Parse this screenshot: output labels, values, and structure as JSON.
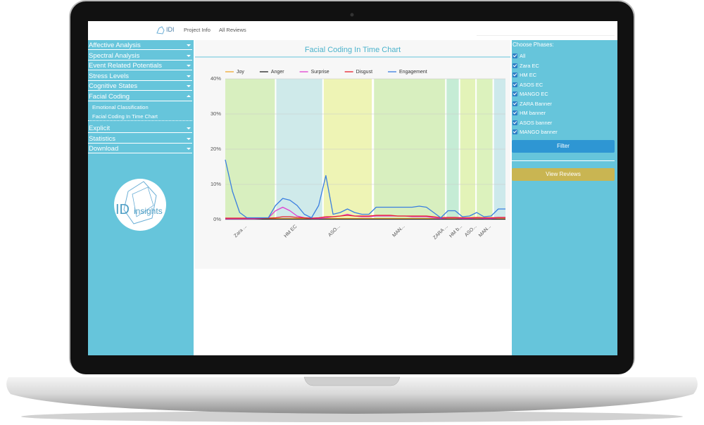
{
  "topbar": {
    "brand": "IDI",
    "links": [
      "Project Info",
      "All Reviews"
    ]
  },
  "sidebar": {
    "menu_top": [
      "Affective Analysis",
      "Spectral Analysis",
      "Event Related Potentials",
      "Stress Levels",
      "Cognitive States",
      "Facial Coding"
    ],
    "submenu": [
      "Emotional Classification",
      "Facial Coding In Time Chart"
    ],
    "menu_bottom": [
      "Explicit",
      "Statistics",
      "Download"
    ],
    "logo": {
      "mark": "ID",
      "text": "insights"
    }
  },
  "phases": {
    "title": "Choose Phases:",
    "options": [
      "All",
      "Zara EC",
      "HM EC",
      "ASOS EC",
      "MANGO EC",
      "ZARA Banner",
      "HM banner",
      "ASOS banner",
      "MANGO banner"
    ],
    "filter": "Filter",
    "view_reviews": "View Reviews"
  },
  "chart_data": {
    "type": "line",
    "title": "Facial Coding In Time Chart",
    "categories": [
      null,
      null,
      null,
      "Zara ...",
      null,
      null,
      null,
      null,
      null,
      null,
      "HM EC",
      null,
      null,
      null,
      null,
      null,
      "ASO...",
      null,
      null,
      null,
      null,
      null,
      null,
      null,
      null,
      "MAN...",
      null,
      null,
      null,
      null,
      null,
      "ZARA ...",
      null,
      "HM b...",
      null,
      "ASO...",
      null,
      "MAN...",
      null,
      null
    ],
    "series": [
      {
        "name": "Joy",
        "color": "#f0a830",
        "values": [
          0.3,
          0.3,
          0.3,
          0.3,
          0.3,
          0.3,
          0.3,
          0.3,
          0.3,
          0.3,
          0.3,
          0.3,
          0.3,
          0.3,
          0.3,
          0.3,
          0.3,
          0.3,
          0.3,
          0.3,
          0.3,
          0.3,
          0.3,
          0.3,
          0.3,
          0.3,
          0.3,
          0.3,
          0.3,
          0.3,
          0.3,
          0.3,
          0.3,
          0.3,
          0.3,
          0.3,
          0.3,
          0.3,
          0.3,
          0.3
        ]
      },
      {
        "name": "Anger",
        "color": "#222222",
        "values": [
          0.1,
          0.1,
          0.1,
          0.1,
          0.1,
          0.1,
          0.1,
          0.1,
          0.1,
          0.1,
          0.1,
          0.1,
          0.1,
          0.1,
          0.1,
          0.1,
          0.1,
          0.1,
          0.1,
          0.1,
          0.1,
          0.1,
          0.1,
          0.1,
          0.1,
          0.1,
          0.1,
          0.1,
          0.1,
          0.1,
          0.1,
          0.1,
          0.1,
          0.1,
          0.1,
          0.1,
          0.1,
          0.1,
          0.1,
          0.1
        ]
      },
      {
        "name": "Surprise",
        "color": "#e040d0",
        "values": [
          0.2,
          0.2,
          0.2,
          0.2,
          0.2,
          0.3,
          0.5,
          2.5,
          3.5,
          2.5,
          1,
          0.5,
          0.3,
          0.3,
          0.5,
          0.8,
          1,
          1.5,
          1,
          0.8,
          0.8,
          1,
          1,
          1,
          1,
          1,
          0.8,
          0.8,
          0.8,
          0.5,
          0.3,
          0.5,
          0.5,
          0.3,
          0.3,
          0.5,
          0.3,
          0.3,
          0.5,
          0.5
        ]
      },
      {
        "name": "Disgust",
        "color": "#e8202a",
        "values": [
          0.4,
          0.4,
          0.4,
          0.4,
          0.4,
          0.4,
          0.4,
          0.5,
          0.8,
          0.8,
          0.6,
          0.5,
          0.4,
          0.5,
          0.8,
          0.8,
          1,
          1.2,
          1,
          1,
          1,
          1.2,
          1.2,
          1.2,
          1,
          1,
          1,
          1,
          1,
          0.8,
          0.5,
          0.6,
          0.6,
          0.5,
          0.5,
          0.6,
          0.5,
          0.5,
          0.6,
          0.6
        ]
      },
      {
        "name": "Engagement",
        "color": "#3a7ee0",
        "values": [
          17,
          8,
          2,
          0.5,
          0.5,
          0.5,
          0.5,
          4,
          6,
          5.5,
          4,
          1.5,
          0.5,
          4,
          12.5,
          1.5,
          2,
          3,
          2,
          1.5,
          1.5,
          3.5,
          3.5,
          3.5,
          3.5,
          3.5,
          3.5,
          3.8,
          3.5,
          2,
          0.5,
          2.5,
          2.5,
          0.8,
          1,
          2,
          0.8,
          1,
          3,
          3
        ]
      }
    ],
    "phase_bands": [
      {
        "from": 0,
        "to": 6.9,
        "color": "#d8efbf"
      },
      {
        "from": 7.1,
        "to": 13.5,
        "color": "#cfeaea"
      },
      {
        "from": 13.7,
        "to": 20.4,
        "color": "#eef4b5"
      },
      {
        "from": 20.7,
        "to": 30.6,
        "color": "#d8efbf"
      },
      {
        "from": 30.8,
        "to": 32.5,
        "color": "#c5ecd5"
      },
      {
        "from": 32.7,
        "to": 34.8,
        "color": "#e3f3b8"
      },
      {
        "from": 35,
        "to": 37.2,
        "color": "#dcf2bd"
      },
      {
        "from": 37.4,
        "to": 39,
        "color": "#cde9eb"
      }
    ],
    "ylim": [
      0,
      40
    ],
    "yticks": [
      {
        "value": 0,
        "label": "0%"
      },
      {
        "value": 10,
        "label": "10%"
      },
      {
        "value": 20,
        "label": "20%"
      },
      {
        "value": 30,
        "label": "30%"
      },
      {
        "value": 40,
        "label": "40%"
      }
    ],
    "grid": true
  }
}
